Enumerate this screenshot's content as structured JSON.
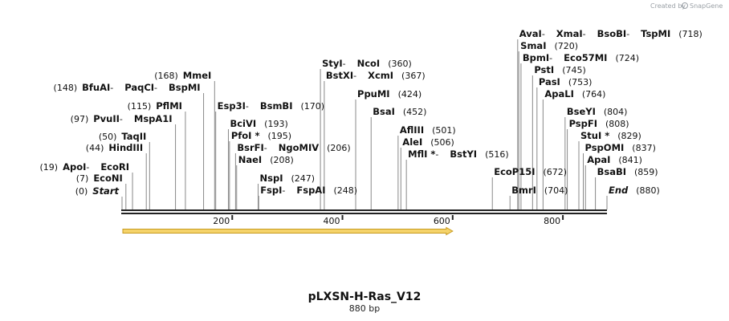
{
  "credit": {
    "text": "Created by",
    "brand": "SnapGene"
  },
  "map": {
    "name": "pLXSN-H-Ras_V12",
    "length_label": "880 bp",
    "total_bp": 880,
    "ticks": [
      200,
      400,
      600,
      800
    ],
    "feature": {
      "start": 0,
      "end": 600,
      "fill": "#f5d36a",
      "stroke": "#c79a1e"
    },
    "colors": {
      "backbone": "#222222",
      "leader": "#888888"
    }
  },
  "sites": [
    {
      "parts": [
        "Start"
      ],
      "pos": 0,
      "pos_label": "(0)",
      "label_side": "left",
      "italic": true
    },
    {
      "parts": [
        "EcoNI"
      ],
      "pos": 7,
      "pos_label": "(7)",
      "label_side": "left"
    },
    {
      "parts": [
        "ApoI",
        "EcoRI"
      ],
      "pos": 19,
      "pos_label": "(19)",
      "label_side": "left"
    },
    {
      "parts": [
        "HindIII"
      ],
      "pos": 44,
      "pos_label": "(44)",
      "label_side": "left"
    },
    {
      "parts": [
        "TaqII"
      ],
      "pos": 50,
      "pos_label": "(50)",
      "label_side": "left"
    },
    {
      "parts": [
        "PvuII",
        "MspA1I"
      ],
      "pos": 97,
      "pos_label": "(97)",
      "label_side": "left"
    },
    {
      "parts": [
        "PflMI"
      ],
      "pos": 115,
      "pos_label": "(115)",
      "label_side": "left"
    },
    {
      "parts": [
        "BfuAI",
        "PaqCI",
        "BspMI"
      ],
      "pos": 148,
      "pos_label": "(148)",
      "label_side": "left"
    },
    {
      "parts": [
        "MmeI"
      ],
      "pos": 168,
      "pos_label": "(168)",
      "label_side": "left"
    },
    {
      "parts": [
        "Esp3I",
        "BsmBI"
      ],
      "pos": 170,
      "pos_label": "(170)",
      "label_side": "right"
    },
    {
      "parts": [
        "BciVI"
      ],
      "pos": 193,
      "pos_label": "(193)",
      "label_side": "right"
    },
    {
      "parts": [
        "PfoI *"
      ],
      "pos": 195,
      "pos_label": "(195)",
      "label_side": "right"
    },
    {
      "parts": [
        "BsrFI",
        "NgoMIV"
      ],
      "pos": 206,
      "pos_label": "(206)",
      "label_side": "right"
    },
    {
      "parts": [
        "NaeI"
      ],
      "pos": 208,
      "pos_label": "(208)",
      "label_side": "right"
    },
    {
      "parts": [
        "NspI"
      ],
      "pos": 247,
      "pos_label": "(247)",
      "label_side": "right"
    },
    {
      "parts": [
        "FspI",
        "FspAI"
      ],
      "pos": 248,
      "pos_label": "(248)",
      "label_side": "right"
    },
    {
      "parts": [
        "StyI",
        "NcoI"
      ],
      "pos": 360,
      "pos_label": "(360)",
      "label_side": "right"
    },
    {
      "parts": [
        "BstXI",
        "XcmI"
      ],
      "pos": 367,
      "pos_label": "(367)",
      "label_side": "right"
    },
    {
      "parts": [
        "PpuMI"
      ],
      "pos": 424,
      "pos_label": "(424)",
      "label_side": "right"
    },
    {
      "parts": [
        "BsaI"
      ],
      "pos": 452,
      "pos_label": "(452)",
      "label_side": "right"
    },
    {
      "parts": [
        "AflIII"
      ],
      "pos": 501,
      "pos_label": "(501)",
      "label_side": "right"
    },
    {
      "parts": [
        "AleI"
      ],
      "pos": 506,
      "pos_label": "(506)",
      "label_side": "right"
    },
    {
      "parts": [
        "MflI *",
        "BstYI"
      ],
      "pos": 516,
      "pos_label": "(516)",
      "label_side": "right"
    },
    {
      "parts": [
        "EcoP15I"
      ],
      "pos": 672,
      "pos_label": "(672)",
      "label_side": "right"
    },
    {
      "parts": [
        "BmrI"
      ],
      "pos": 704,
      "pos_label": "(704)",
      "label_side": "right"
    },
    {
      "parts": [
        "AvaI",
        "XmaI",
        "BsoBI",
        "TspMI"
      ],
      "pos": 718,
      "pos_label": "(718)",
      "label_side": "right"
    },
    {
      "parts": [
        "SmaI"
      ],
      "pos": 720,
      "pos_label": "(720)",
      "label_side": "right"
    },
    {
      "parts": [
        "BpmI",
        "Eco57MI"
      ],
      "pos": 724,
      "pos_label": "(724)",
      "label_side": "right"
    },
    {
      "parts": [
        "PstI"
      ],
      "pos": 745,
      "pos_label": "(745)",
      "label_side": "right"
    },
    {
      "parts": [
        "PasI"
      ],
      "pos": 753,
      "pos_label": "(753)",
      "label_side": "right"
    },
    {
      "parts": [
        "ApaLI"
      ],
      "pos": 764,
      "pos_label": "(764)",
      "label_side": "right"
    },
    {
      "parts": [
        "BseYI"
      ],
      "pos": 804,
      "pos_label": "(804)",
      "label_side": "right"
    },
    {
      "parts": [
        "PspFI"
      ],
      "pos": 808,
      "pos_label": "(808)",
      "label_side": "right"
    },
    {
      "parts": [
        "StuI *"
      ],
      "pos": 829,
      "pos_label": "(829)",
      "label_side": "right"
    },
    {
      "parts": [
        "PspOMI"
      ],
      "pos": 837,
      "pos_label": "(837)",
      "label_side": "right"
    },
    {
      "parts": [
        "ApaI"
      ],
      "pos": 841,
      "pos_label": "(841)",
      "label_side": "right"
    },
    {
      "parts": [
        "BsaBI"
      ],
      "pos": 859,
      "pos_label": "(859)",
      "label_side": "right"
    },
    {
      "parts": [
        "End"
      ],
      "pos": 880,
      "pos_label": "(880)",
      "label_side": "right",
      "italic": true
    }
  ]
}
